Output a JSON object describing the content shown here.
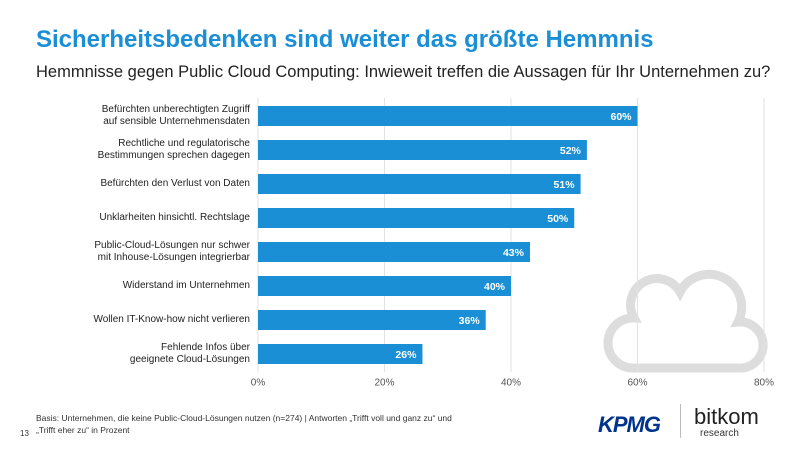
{
  "chart_data": {
    "type": "bar",
    "orientation": "horizontal",
    "title": "Sicherheitsbedenken sind weiter das größte Hemmnis",
    "subtitle": "Hemmnisse gegen Public Cloud Computing: Inwieweit treffen die Aussagen für Ihr Unternehmen zu?",
    "categories": [
      "Befürchten unberechtigten Zugriff\nauf sensible Unternehmensdaten",
      "Rechtliche und regulatorische\nBestimmungen sprechen dagegen",
      "Befürchten den Verlust von Daten",
      "Unklarheiten hinsichtl. Rechtslage",
      "Public-Cloud-Lösungen nur schwer\nmit Inhouse-Lösungen integrierbar",
      "Widerstand im Unternehmen",
      "Wollen IT-Know-how nicht verlieren",
      "Fehlende Infos über\ngeeignete Cloud-Lösungen"
    ],
    "values": [
      60,
      52,
      51,
      50,
      43,
      40,
      36,
      26
    ],
    "value_labels": [
      "60%",
      "52%",
      "51%",
      "50%",
      "43%",
      "40%",
      "36%",
      "26%"
    ],
    "color": "#1b8fd6",
    "xlim": [
      0,
      80
    ],
    "xticks": [
      {
        "value": 0,
        "label": "0%"
      },
      {
        "value": 20,
        "label": "20%"
      },
      {
        "value": 40,
        "label": "40%"
      },
      {
        "value": 60,
        "label": "60%"
      },
      {
        "value": 80,
        "label": "80%"
      }
    ],
    "grid": true,
    "note": "Basis: Unternehmen, die keine Public-Cloud-Lösungen nutzen (n=274) | Antworten „Trifft voll und ganz zu“ und\n„Trifft eher zu“ in Prozent"
  },
  "page_number": "13",
  "logo_kpmg": "KPMG",
  "logo_bitkom": "bitkom",
  "logo_bitkom_sub": "research"
}
